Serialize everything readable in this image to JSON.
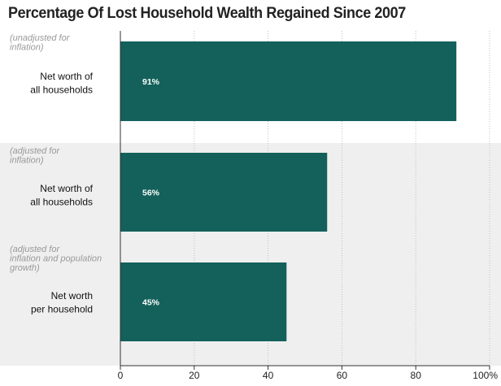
{
  "colors": {
    "bar": "#13615a",
    "band": "#efefef",
    "grid": "#bfbfbf",
    "axis": "#333333",
    "note_text": "#999999",
    "label_text": "#111111",
    "value_text": "#ffffff"
  },
  "chart_data": {
    "type": "bar",
    "orientation": "horizontal",
    "title": "Percentage Of Lost Household Wealth Regained Since 2007",
    "categories": [
      {
        "note": [
          "(unadjusted for",
          "inflation)"
        ],
        "label": [
          "Net worth of",
          "all households"
        ]
      },
      {
        "note": [
          "(adjusted for",
          "inflation)"
        ],
        "label": [
          "Net worth of",
          "all households"
        ]
      },
      {
        "note": [
          "(adjusted for",
          "inflation and population",
          "growth)"
        ],
        "label": [
          "Net worth",
          "per household"
        ]
      }
    ],
    "values": [
      91,
      56,
      45
    ],
    "value_labels": [
      "91%",
      "56%",
      "45%"
    ],
    "xlim": [
      0,
      100
    ],
    "x_ticks": [
      0,
      20,
      40,
      60,
      80,
      100
    ],
    "x_tick_labels": [
      "0",
      "20",
      "40",
      "60",
      "80",
      "100%"
    ],
    "grid": true
  }
}
